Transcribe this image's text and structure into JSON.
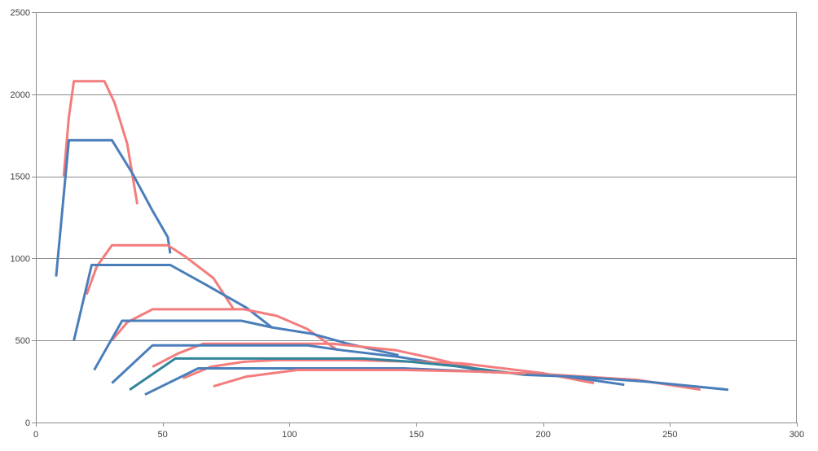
{
  "chart_data": {
    "type": "line",
    "title": "",
    "xlabel": "",
    "ylabel": "",
    "xlim": [
      0,
      300
    ],
    "ylim": [
      0,
      2500
    ],
    "x_ticks": [
      0,
      50,
      100,
      150,
      200,
      250,
      300
    ],
    "y_ticks": [
      0,
      500,
      1000,
      1500,
      2000,
      2500
    ],
    "grid": {
      "horizontal": true,
      "vertical": false
    },
    "legend": "none",
    "colors": {
      "blue": "#4a7ebb",
      "red": "#f47c7c",
      "teal": "#31859c",
      "grid": "#8c8c8c",
      "text": "#404040"
    },
    "series": [
      {
        "color": "#f47c7c",
        "points": [
          [
            11,
            1500
          ],
          [
            13,
            1860
          ],
          [
            15,
            2080
          ],
          [
            27,
            2080
          ],
          [
            31,
            1950
          ],
          [
            36,
            1700
          ],
          [
            40,
            1330
          ]
        ]
      },
      {
        "color": "#4a7ebb",
        "points": [
          [
            8,
            890
          ],
          [
            13,
            1720
          ],
          [
            30,
            1720
          ],
          [
            38,
            1520
          ],
          [
            46,
            1290
          ],
          [
            52,
            1130
          ],
          [
            53,
            1030
          ]
        ]
      },
      {
        "color": "#f47c7c",
        "points": [
          [
            20,
            780
          ],
          [
            24,
            950
          ],
          [
            30,
            1080
          ],
          [
            52,
            1080
          ],
          [
            59,
            1010
          ],
          [
            70,
            880
          ],
          [
            78,
            690
          ]
        ]
      },
      {
        "color": "#4a7ebb",
        "points": [
          [
            15,
            500
          ],
          [
            22,
            960
          ],
          [
            53,
            960
          ],
          [
            67,
            840
          ],
          [
            83,
            700
          ],
          [
            93,
            580
          ]
        ]
      },
      {
        "color": "#f47c7c",
        "points": [
          [
            30,
            500
          ],
          [
            36,
            610
          ],
          [
            46,
            690
          ],
          [
            82,
            690
          ],
          [
            95,
            650
          ],
          [
            107,
            570
          ],
          [
            119,
            440
          ]
        ]
      },
      {
        "color": "#4a7ebb",
        "points": [
          [
            23,
            320
          ],
          [
            34,
            620
          ],
          [
            81,
            620
          ],
          [
            93,
            580
          ],
          [
            109,
            540
          ],
          [
            123,
            480
          ],
          [
            143,
            410
          ]
        ]
      },
      {
        "color": "#f47c7c",
        "points": [
          [
            46,
            340
          ],
          [
            56,
            420
          ],
          [
            66,
            480
          ],
          [
            117,
            480
          ],
          [
            142,
            440
          ],
          [
            157,
            390
          ],
          [
            173,
            330
          ]
        ]
      },
      {
        "color": "#4a7ebb",
        "points": [
          [
            30,
            240
          ],
          [
            46,
            470
          ],
          [
            107,
            470
          ],
          [
            121,
            440
          ],
          [
            143,
            400
          ],
          [
            175,
            320
          ]
        ]
      },
      {
        "color": "#f47c7c",
        "points": [
          [
            58,
            270
          ],
          [
            69,
            340
          ],
          [
            82,
            370
          ],
          [
            95,
            380
          ],
          [
            125,
            380
          ],
          [
            150,
            370
          ],
          [
            168,
            360
          ],
          [
            200,
            300
          ],
          [
            220,
            240
          ]
        ]
      },
      {
        "color": "#31859c",
        "points": [
          [
            37,
            200
          ],
          [
            55,
            390
          ],
          [
            129,
            390
          ],
          [
            148,
            370
          ],
          [
            168,
            340
          ],
          [
            193,
            290
          ]
        ]
      },
      {
        "color": "#4a7ebb",
        "points": [
          [
            43,
            170
          ],
          [
            64,
            330
          ],
          [
            145,
            330
          ],
          [
            175,
            310
          ],
          [
            205,
            290
          ],
          [
            232,
            230
          ]
        ]
      },
      {
        "color": "#f47c7c",
        "points": [
          [
            70,
            220
          ],
          [
            83,
            280
          ],
          [
            103,
            320
          ],
          [
            145,
            320
          ],
          [
            175,
            310
          ],
          [
            205,
            290
          ],
          [
            237,
            260
          ],
          [
            262,
            200
          ]
        ]
      },
      {
        "color": "#4a7ebb",
        "points": [
          [
            193,
            290
          ],
          [
            212,
            280
          ],
          [
            240,
            250
          ],
          [
            273,
            200
          ]
        ]
      }
    ]
  }
}
